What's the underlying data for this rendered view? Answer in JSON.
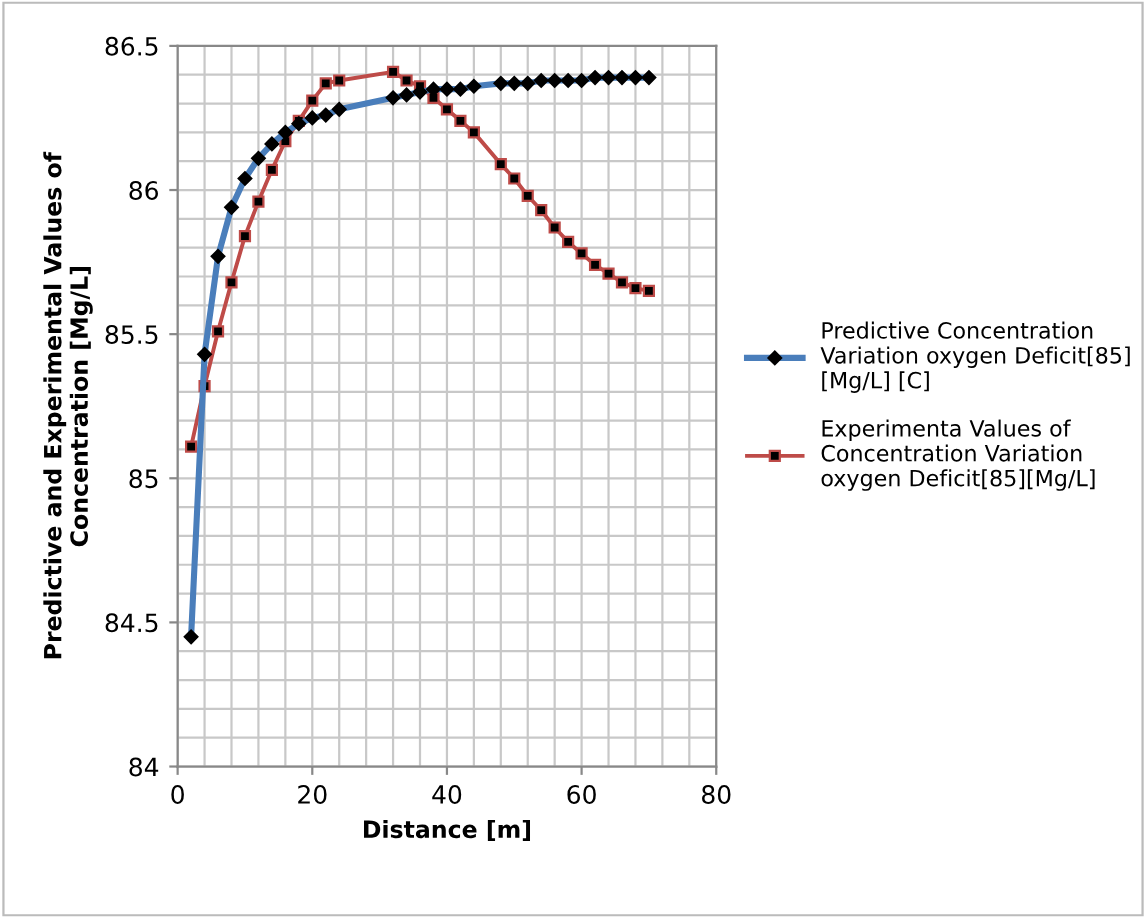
{
  "chart_data": {
    "type": "line",
    "xlabel": "Distance [m]",
    "ylabel": "Predictive and Experimental Values of\nConcentration [Mg/L]",
    "xlim": [
      0,
      80
    ],
    "ylim": [
      84,
      86.5
    ],
    "xticks": [
      0,
      {
        "value": 4,
        "label": null
      },
      {
        "value": 8,
        "label": null
      },
      {
        "value": 12,
        "label": null
      },
      {
        "value": 16,
        "label": null
      },
      20,
      {
        "value": 24,
        "label": null
      },
      {
        "value": 28,
        "label": null
      },
      {
        "value": 32,
        "label": null
      },
      {
        "value": 36,
        "label": null
      },
      40,
      {
        "value": 44,
        "label": null
      },
      {
        "value": 48,
        "label": null
      },
      {
        "value": 52,
        "label": null
      },
      {
        "value": 56,
        "label": null
      },
      60,
      {
        "value": 64,
        "label": null
      },
      {
        "value": 68,
        "label": null
      },
      {
        "value": 72,
        "label": null
      },
      {
        "value": 76,
        "label": null
      },
      80
    ],
    "yticks": [
      84,
      {
        "value": 84.1,
        "label": null
      },
      {
        "value": 84.2,
        "label": null
      },
      {
        "value": 84.3,
        "label": null
      },
      {
        "value": 84.4,
        "label": null
      },
      84.5,
      {
        "value": 84.6,
        "label": null
      },
      {
        "value": 84.7,
        "label": null
      },
      {
        "value": 84.8,
        "label": null
      },
      {
        "value": 84.9,
        "label": null
      },
      85,
      {
        "value": 85.1,
        "label": null
      },
      {
        "value": 85.2,
        "label": null
      },
      {
        "value": 85.3,
        "label": null
      },
      {
        "value": 85.4,
        "label": null
      },
      85.5,
      {
        "value": 85.6,
        "label": null
      },
      {
        "value": 85.7,
        "label": null
      },
      {
        "value": 85.8,
        "label": null
      },
      {
        "value": 85.9,
        "label": null
      },
      86,
      {
        "value": 86.1,
        "label": null
      },
      {
        "value": 86.2,
        "label": null
      },
      {
        "value": 86.3,
        "label": null
      },
      {
        "value": 86.4,
        "label": null
      },
      86.5
    ],
    "grid": true,
    "legend": "right",
    "line_style": "solid",
    "series": [
      {
        "name": "Predictive Concentration Variation oxygen Deficit[85] [Mg/L] [C]",
        "color": "#4a7ebb",
        "marker": "diamond",
        "x": [
          2,
          4,
          6,
          8,
          10,
          12,
          14,
          16,
          18,
          20,
          22,
          24,
          32,
          34,
          36,
          38,
          40,
          42,
          44,
          48,
          50,
          52,
          54,
          56,
          58,
          60,
          62,
          64,
          66,
          68,
          70
        ],
        "values": [
          84.45,
          85.43,
          85.77,
          85.94,
          86.04,
          86.11,
          86.16,
          86.2,
          86.23,
          86.25,
          86.26,
          86.28,
          86.32,
          86.33,
          86.34,
          86.35,
          86.35,
          86.35,
          86.36,
          86.37,
          86.37,
          86.37,
          86.38,
          86.38,
          86.38,
          86.38,
          86.39,
          86.39,
          86.39,
          86.39,
          86.39
        ]
      },
      {
        "name": "Experimenta Values of Concentration Variation oxygen Deficit[85][Mg/L]",
        "color": "#be4b48",
        "marker": "square",
        "x": [
          2,
          4,
          6,
          8,
          10,
          12,
          14,
          16,
          18,
          20,
          22,
          24,
          32,
          34,
          36,
          38,
          40,
          42,
          44,
          48,
          50,
          52,
          54,
          56,
          58,
          60,
          62,
          64,
          66,
          68,
          70
        ],
        "values": [
          85.11,
          85.32,
          85.51,
          85.68,
          85.84,
          85.96,
          86.07,
          86.17,
          86.24,
          86.31,
          86.37,
          86.38,
          86.41,
          86.38,
          86.36,
          86.32,
          86.28,
          86.24,
          86.2,
          86.09,
          86.04,
          85.98,
          85.93,
          85.87,
          85.82,
          85.78,
          85.74,
          85.71,
          85.68,
          85.66,
          85.65
        ]
      }
    ]
  }
}
